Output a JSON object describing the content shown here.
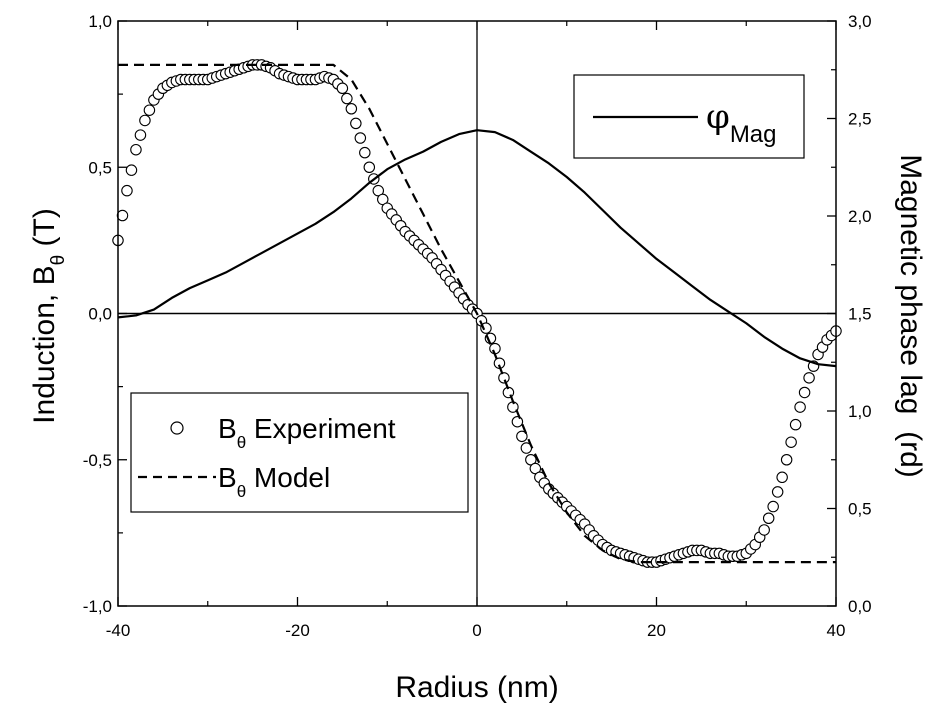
{
  "chart_data": {
    "type": "line",
    "xlabel": "Radius (nm)",
    "ylabel": {
      "main": "Induction, B",
      "sub": "θ",
      "unit": " (T)"
    },
    "y2label": "Magnetic phase lag  (rd)",
    "xlim": [
      -40,
      40
    ],
    "ylim": [
      -1.0,
      1.0
    ],
    "y2lim": [
      0.0,
      3.0
    ],
    "x_ticks": [
      "-40",
      "-20",
      "0",
      "20",
      "40"
    ],
    "y_ticks": [
      "-1,0",
      "-0,5",
      "0,0",
      "0,5",
      "1,0"
    ],
    "y2_ticks": [
      "0,0",
      "0,5",
      "1,0",
      "1,5",
      "2,0",
      "2,5",
      "3,0"
    ],
    "grid": false,
    "reference_lines": {
      "x": 0,
      "y": 0
    },
    "legends": {
      "left": [
        {
          "symbol": "open-circle",
          "main": "B",
          "sub": "θ",
          "rest": " Experiment"
        },
        {
          "symbol": "dashed-line",
          "main": "B",
          "sub": "θ",
          "rest": " Model"
        }
      ],
      "right": [
        {
          "symbol": "solid-line",
          "main": "φ",
          "sub": "Mag"
        }
      ]
    },
    "series": [
      {
        "key": "experiment",
        "axis": "left",
        "style": "open-circle",
        "x": [
          -40,
          -39,
          -38,
          -37,
          -36,
          -35,
          -34,
          -33,
          -32,
          -31,
          -30,
          -29,
          -28,
          -27,
          -26,
          -25,
          -24,
          -23,
          -22,
          -21,
          -20,
          -19,
          -18,
          -17,
          -16,
          -15,
          -14,
          -13,
          -12,
          -11,
          -10,
          -9,
          -8,
          -7,
          -6,
          -5,
          -4,
          -3,
          -2,
          -1,
          0,
          1,
          2,
          3,
          4,
          5,
          6,
          7,
          8,
          9,
          10,
          11,
          12,
          13,
          14,
          15,
          16,
          17,
          18,
          19,
          20,
          21,
          22,
          23,
          24,
          25,
          26,
          27,
          28,
          29,
          30,
          31,
          32,
          33,
          34,
          35,
          36,
          37,
          38,
          39,
          40
        ],
        "y": [
          0.25,
          0.42,
          0.56,
          0.66,
          0.73,
          0.77,
          0.79,
          0.8,
          0.8,
          0.8,
          0.8,
          0.81,
          0.82,
          0.83,
          0.84,
          0.85,
          0.85,
          0.84,
          0.82,
          0.81,
          0.8,
          0.8,
          0.8,
          0.81,
          0.8,
          0.77,
          0.7,
          0.6,
          0.5,
          0.42,
          0.36,
          0.32,
          0.28,
          0.25,
          0.22,
          0.19,
          0.15,
          0.11,
          0.07,
          0.03,
          0.0,
          -0.05,
          -0.12,
          -0.22,
          -0.32,
          -0.42,
          -0.5,
          -0.56,
          -0.6,
          -0.63,
          -0.66,
          -0.69,
          -0.72,
          -0.76,
          -0.79,
          -0.81,
          -0.82,
          -0.83,
          -0.84,
          -0.85,
          -0.85,
          -0.84,
          -0.83,
          -0.82,
          -0.81,
          -0.81,
          -0.82,
          -0.82,
          -0.83,
          -0.83,
          -0.82,
          -0.79,
          -0.74,
          -0.66,
          -0.56,
          -0.44,
          -0.32,
          -0.22,
          -0.14,
          -0.09,
          -0.06
        ]
      },
      {
        "key": "model",
        "axis": "left",
        "style": "dashed",
        "x": [
          -40,
          -16,
          -14,
          -12,
          -10,
          -8,
          -6,
          -4,
          -2,
          0,
          2,
          4,
          6,
          8,
          10,
          12,
          14,
          16,
          18,
          20,
          40
        ],
        "y": [
          0.85,
          0.85,
          0.8,
          0.7,
          0.58,
          0.46,
          0.34,
          0.22,
          0.11,
          0.0,
          -0.14,
          -0.3,
          -0.45,
          -0.58,
          -0.68,
          -0.76,
          -0.81,
          -0.84,
          -0.85,
          -0.85,
          -0.85
        ]
      },
      {
        "key": "phase",
        "axis": "right",
        "style": "solid",
        "x": [
          -40,
          -38,
          -36,
          -34,
          -32,
          -30,
          -28,
          -26,
          -24,
          -22,
          -20,
          -18,
          -16,
          -14,
          -12,
          -10,
          -8,
          -6,
          -4,
          -2,
          0,
          2,
          4,
          6,
          8,
          10,
          12,
          14,
          16,
          18,
          20,
          22,
          24,
          26,
          28,
          30,
          32,
          34,
          36,
          38,
          40
        ],
        "y": [
          1.48,
          1.49,
          1.52,
          1.58,
          1.63,
          1.67,
          1.71,
          1.76,
          1.81,
          1.86,
          1.91,
          1.96,
          2.02,
          2.09,
          2.17,
          2.24,
          2.29,
          2.33,
          2.38,
          2.42,
          2.44,
          2.43,
          2.39,
          2.33,
          2.27,
          2.2,
          2.12,
          2.03,
          1.94,
          1.86,
          1.78,
          1.71,
          1.64,
          1.57,
          1.51,
          1.45,
          1.38,
          1.32,
          1.27,
          1.24,
          1.23
        ]
      }
    ]
  }
}
